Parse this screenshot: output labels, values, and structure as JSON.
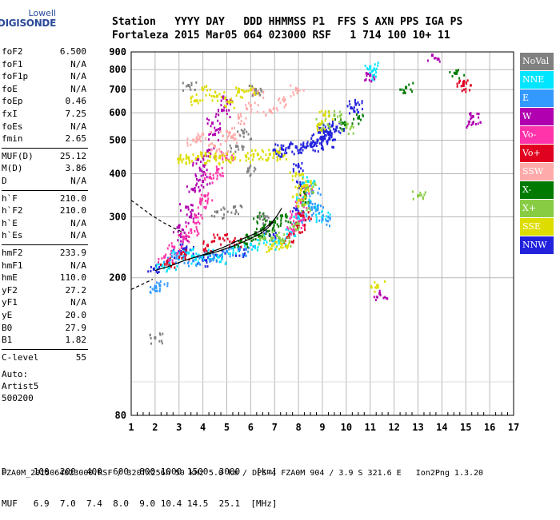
{
  "logo": {
    "line1": "Lowell",
    "line2": "DIGISONDE"
  },
  "header": {
    "labels": "Station   YYYY DAY   DDD HHMMSS P1  FFS S AXN PPS IGA PS",
    "values": "Fortaleza 2015 Mar05 064 023000 RSF   1 714 100 10+ 11"
  },
  "params": [
    {
      "name": "foF2",
      "value": "6.500"
    },
    {
      "name": "foF1",
      "value": "N/A"
    },
    {
      "name": "foF1p",
      "value": "N/A"
    },
    {
      "name": "foE",
      "value": "N/A"
    },
    {
      "name": "foEp",
      "value": "0.46"
    },
    {
      "name": "fxI",
      "value": "7.25"
    },
    {
      "name": "foEs",
      "value": "N/A"
    },
    {
      "name": "fmin",
      "value": "2.65"
    },
    {
      "name": "MUF(D)",
      "value": "25.12"
    },
    {
      "name": "M(D)",
      "value": "3.86"
    },
    {
      "name": "D",
      "value": "N/A"
    },
    {
      "name": "h`F",
      "value": "210.0"
    },
    {
      "name": "h`F2",
      "value": "210.0"
    },
    {
      "name": "h`E",
      "value": "N/A"
    },
    {
      "name": "h`Es",
      "value": "N/A"
    },
    {
      "name": "hmF2",
      "value": "233.9"
    },
    {
      "name": "hmF1",
      "value": "N/A"
    },
    {
      "name": "hmE",
      "value": "110.0"
    },
    {
      "name": "yF2",
      "value": "27.2"
    },
    {
      "name": "yF1",
      "value": "N/A"
    },
    {
      "name": "yE",
      "value": "20.0"
    },
    {
      "name": "B0",
      "value": "27.9"
    },
    {
      "name": "B1",
      "value": "1.82"
    },
    {
      "name": "C-level",
      "value": "55"
    }
  ],
  "auto": {
    "label": "Auto:",
    "software": "Artist5",
    "version": "500200"
  },
  "legend": [
    {
      "label": "NoVal",
      "color": "#808080"
    },
    {
      "label": "NNE",
      "color": "#00e5ff"
    },
    {
      "label": "E",
      "color": "#3399ff"
    },
    {
      "label": "W",
      "color": "#b000b0"
    },
    {
      "label": "Vo-",
      "color": "#ff33aa"
    },
    {
      "label": "Vo+",
      "color": "#e00020"
    },
    {
      "label": "SSW",
      "color": "#ffaaaa"
    },
    {
      "label": "X-",
      "color": "#007a00"
    },
    {
      "label": "X+",
      "color": "#88cc44"
    },
    {
      "label": "SSE",
      "color": "#dddd00"
    },
    {
      "label": "NNW",
      "color": "#2222dd"
    }
  ],
  "dtable": {
    "d_label": "D",
    "d_values": [
      "100",
      "200",
      "400",
      "600",
      "800",
      "1000",
      "1500",
      "3000",
      "[km]"
    ],
    "muf_label": "MUF",
    "muf_values": [
      "6.9",
      "7.0",
      "7.4",
      "8.0",
      "9.0",
      "10.4",
      "14.5",
      "25.1",
      "[MHz]"
    ]
  },
  "footer": "FZA0M_2015064023000.RSF / 320fx256h 50 kHz 5.0 km / DPS-4 FZA0M 904 / 3.9 S 321.6 E   Ion2Png 1.3.20",
  "chart_data": {
    "type": "scatter",
    "title": "",
    "xlabel": "",
    "ylabel": "",
    "xlim": [
      1,
      17
    ],
    "ylim": [
      80,
      900
    ],
    "yscale": "log",
    "x_ticks": [
      "1",
      "2",
      "3",
      "4",
      "5",
      "6",
      "7",
      "8",
      "9",
      "10",
      "11",
      "12",
      "13",
      "14",
      "15",
      "16",
      "17"
    ],
    "y_ticks": [
      "80",
      "200",
      "300",
      "400",
      "500",
      "600",
      "700",
      "800",
      "900"
    ],
    "y_tick_values": [
      80,
      200,
      300,
      400,
      500,
      600,
      700,
      800,
      900
    ],
    "grid": true,
    "legend_position": "right",
    "series": [
      {
        "color": "#2222dd",
        "points": [
          [
            8.9,
            540
          ],
          [
            9.1,
            530
          ],
          [
            9.3,
            520
          ],
          [
            9.0,
            510
          ],
          [
            9.2,
            495
          ],
          [
            8.8,
            500
          ],
          [
            9.4,
            550
          ],
          [
            8.7,
            490
          ],
          [
            8.5,
            485
          ],
          [
            8.2,
            480
          ],
          [
            7.9,
            478
          ],
          [
            7.6,
            476
          ],
          [
            7.3,
            472
          ],
          [
            7.0,
            468
          ],
          [
            10.2,
            620
          ],
          [
            10.4,
            635
          ],
          [
            9.6,
            545
          ],
          [
            1.95,
            212
          ],
          [
            3.0,
            238
          ],
          [
            3.3,
            243
          ],
          [
            4.0,
            225
          ],
          [
            4.6,
            232
          ],
          [
            5.5,
            240
          ],
          [
            6.8,
            265
          ],
          [
            7.9,
            315
          ],
          [
            8.1,
            370
          ],
          [
            8.0,
            420
          ]
        ]
      },
      {
        "color": "#00e5ff",
        "points": [
          [
            11.0,
            815
          ],
          [
            11.0,
            780
          ],
          [
            2.3,
            217
          ],
          [
            2.6,
            220
          ],
          [
            2.9,
            233
          ],
          [
            3.4,
            236
          ],
          [
            3.7,
            228
          ],
          [
            4.2,
            234
          ],
          [
            4.8,
            227
          ],
          [
            5.2,
            245
          ],
          [
            6.0,
            250
          ],
          [
            6.6,
            258
          ],
          [
            7.2,
            252
          ],
          [
            7.7,
            270
          ],
          [
            8.0,
            300
          ],
          [
            8.2,
            340
          ],
          [
            8.4,
            380
          ],
          [
            8.7,
            320
          ],
          [
            9.0,
            300
          ]
        ]
      },
      {
        "color": "#3399ff",
        "points": [
          [
            2.6,
            225
          ],
          [
            3.0,
            230
          ],
          [
            3.6,
            224
          ],
          [
            4.3,
            232
          ],
          [
            5.0,
            238
          ],
          [
            5.8,
            242
          ],
          [
            8.2,
            300
          ],
          [
            8.5,
            330
          ],
          [
            8.8,
            315
          ],
          [
            9.0,
            295
          ],
          [
            8.6,
            355
          ],
          [
            2.0,
            188
          ],
          [
            2.2,
            190
          ]
        ]
      },
      {
        "color": "#b000b0",
        "points": [
          [
            3.0,
            280
          ],
          [
            3.3,
            320
          ],
          [
            3.6,
            360
          ],
          [
            3.9,
            410
          ],
          [
            4.2,
            465
          ],
          [
            4.5,
            520
          ],
          [
            4.8,
            610
          ],
          [
            4.0,
            380
          ],
          [
            3.5,
            300
          ],
          [
            3.8,
            440
          ],
          [
            4.4,
            560
          ],
          [
            5.0,
            650
          ],
          [
            3.2,
            260
          ],
          [
            11.0,
            770
          ],
          [
            13.6,
            880
          ],
          [
            15.3,
            585
          ],
          [
            15.3,
            560
          ],
          [
            11.4,
            180
          ]
        ]
      },
      {
        "color": "#ff33aa",
        "points": [
          [
            2.8,
            245
          ],
          [
            3.2,
            262
          ],
          [
            3.7,
            300
          ],
          [
            4.1,
            345
          ],
          [
            4.6,
            410
          ],
          [
            5.0,
            455
          ],
          [
            3.5,
            275
          ],
          [
            4.3,
            390
          ],
          [
            2.4,
            230
          ],
          [
            7.9,
            305
          ],
          [
            8.1,
            330
          ],
          [
            8.3,
            360
          ],
          [
            8.0,
            290
          ],
          [
            7.8,
            275
          ],
          [
            3.9,
            330
          ]
        ]
      },
      {
        "color": "#e00020",
        "points": [
          [
            2.5,
            222
          ],
          [
            3.1,
            235
          ],
          [
            4.2,
            248
          ],
          [
            5.3,
            255
          ],
          [
            7.6,
            262
          ],
          [
            8.0,
            282
          ],
          [
            8.2,
            302
          ],
          [
            14.9,
            725
          ],
          [
            14.9,
            720
          ],
          [
            4.7,
            260
          ]
        ]
      },
      {
        "color": "#ffaaaa",
        "points": [
          [
            4.5,
            480
          ],
          [
            5.0,
            530
          ],
          [
            5.5,
            580
          ],
          [
            6.0,
            630
          ],
          [
            6.3,
            690
          ],
          [
            5.2,
            510
          ],
          [
            4.8,
            455
          ],
          [
            6.8,
            610
          ],
          [
            7.4,
            650
          ],
          [
            7.9,
            700
          ],
          [
            3.6,
            500
          ],
          [
            4.0,
            520
          ]
        ]
      },
      {
        "color": "#007a00",
        "points": [
          [
            5.9,
            262
          ],
          [
            6.2,
            270
          ],
          [
            6.5,
            278
          ],
          [
            6.8,
            285
          ],
          [
            7.0,
            290
          ],
          [
            5.6,
            255
          ],
          [
            6.3,
            300
          ],
          [
            12.5,
            710
          ],
          [
            14.6,
            780
          ],
          [
            10.5,
            580
          ],
          [
            9.8,
            560
          ],
          [
            8.3,
            345
          ],
          [
            7.5,
            300
          ]
        ]
      },
      {
        "color": "#88cc44",
        "points": [
          [
            6.6,
            260
          ],
          [
            7.1,
            265
          ],
          [
            7.8,
            282
          ],
          [
            8.2,
            325
          ],
          [
            8.4,
            365
          ],
          [
            9.0,
            560
          ],
          [
            9.5,
            590
          ],
          [
            13.0,
            345
          ],
          [
            10.0,
            545
          ],
          [
            7.4,
            255
          ]
        ]
      },
      {
        "color": "#dddd00",
        "points": [
          [
            3.0,
            440
          ],
          [
            3.4,
            445
          ],
          [
            3.8,
            448
          ],
          [
            4.3,
            448
          ],
          [
            4.7,
            445
          ],
          [
            5.2,
            445
          ],
          [
            5.8,
            450
          ],
          [
            6.3,
            455
          ],
          [
            6.8,
            455
          ],
          [
            7.2,
            460
          ],
          [
            3.7,
            650
          ],
          [
            4.0,
            700
          ],
          [
            5.5,
            690
          ],
          [
            6.0,
            700
          ],
          [
            8.9,
            555
          ],
          [
            9.1,
            590
          ],
          [
            8.1,
            360
          ],
          [
            8.0,
            335
          ],
          [
            7.9,
            400
          ],
          [
            8.3,
            370
          ],
          [
            11.3,
            190
          ],
          [
            7.3,
            250
          ],
          [
            6.9,
            248
          ],
          [
            5.1,
            645
          ],
          [
            4.6,
            670
          ]
        ]
      },
      {
        "color": "#808080",
        "points": [
          [
            2.0,
            134
          ],
          [
            4.6,
            310
          ],
          [
            5.3,
            320
          ],
          [
            6.6,
            300
          ],
          [
            5.9,
            410
          ],
          [
            6.2,
            700
          ],
          [
            5.4,
            480
          ],
          [
            3.4,
            720
          ],
          [
            5.7,
            525
          ]
        ]
      }
    ],
    "lines": [
      {
        "color": "#000000",
        "style": "solid",
        "points": [
          [
            2.0,
            210
          ],
          [
            2.6,
            216
          ],
          [
            3.2,
            224
          ],
          [
            4.0,
            233
          ],
          [
            4.8,
            244
          ],
          [
            5.4,
            255
          ],
          [
            6.0,
            265
          ],
          [
            6.5,
            275
          ],
          [
            6.9,
            290
          ],
          [
            7.1,
            302
          ],
          [
            7.3,
            318
          ]
        ]
      },
      {
        "color": "#000000",
        "style": "solid",
        "points": [
          [
            4.0,
            232
          ],
          [
            4.6,
            238
          ],
          [
            5.2,
            246
          ],
          [
            5.7,
            254
          ],
          [
            6.1,
            262
          ],
          [
            6.4,
            268
          ],
          [
            6.7,
            278
          ],
          [
            6.95,
            290
          ]
        ]
      },
      {
        "color": "#000000",
        "style": "dashed",
        "points": [
          [
            1.0,
            335
          ],
          [
            1.4,
            320
          ],
          [
            1.8,
            305
          ],
          [
            2.3,
            290
          ],
          [
            2.8,
            278
          ],
          [
            3.2,
            270
          ]
        ]
      },
      {
        "color": "#000000",
        "style": "dashed",
        "points": [
          [
            1.0,
            185
          ],
          [
            1.5,
            192
          ],
          [
            1.9,
            198
          ]
        ]
      }
    ]
  }
}
